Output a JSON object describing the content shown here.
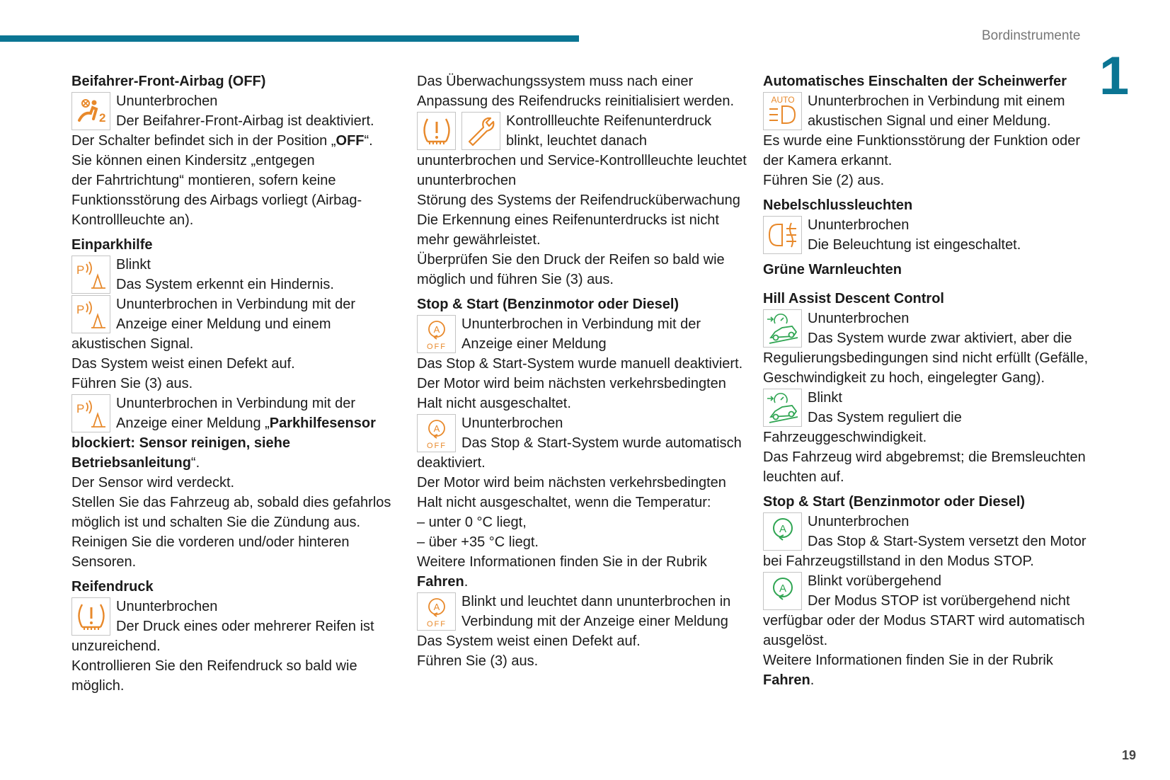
{
  "header": {
    "section_title": "Bordinstrumente",
    "chapter_number": "1",
    "accent_color": "#0b7593"
  },
  "footer": {
    "page_number": "19"
  },
  "colors": {
    "orange": "#e8892b",
    "green": "#2fa552"
  },
  "columns": [
    {
      "blocks": [
        {
          "type": "heading",
          "text": "Beifahrer-Front-Airbag (OFF)"
        },
        {
          "type": "item",
          "icons": [
            "airbag-off"
          ],
          "lines": [
            "Ununterbrochen",
            "Der Beifahrer-Front-Airbag ist deaktiviert.",
            [
              {
                "text": "Der Schalter befindet sich in der Position „"
              },
              {
                "text": "OFF",
                "bold": true
              },
              {
                "text": "“."
              }
            ],
            "Sie können einen Kindersitz „entgegen",
            "der Fahrtrichtung“ montieren, sofern keine",
            "Funktionsstörung des Airbags vorliegt (Airbag-",
            "Kontrollleuchte an)."
          ]
        },
        {
          "type": "heading",
          "text": "Einparkhilfe"
        },
        {
          "type": "item",
          "icons": [
            "park-assist"
          ],
          "lines": [
            "Blinkt",
            "Das System erkennt ein Hindernis."
          ]
        },
        {
          "type": "item",
          "icons": [
            "park-assist"
          ],
          "lines": [
            "Ununterbrochen in Verbindung mit der",
            "Anzeige einer Meldung und einem",
            "akustischen Signal.",
            "Das System weist einen Defekt auf.",
            "Führen Sie (3) aus."
          ]
        },
        {
          "type": "item",
          "icons": [
            "park-assist"
          ],
          "lines": [
            "Ununterbrochen in Verbindung mit der",
            [
              {
                "text": "Anzeige einer Meldung „"
              },
              {
                "text": "Parkhilfesensor",
                "bold": true
              }
            ],
            [
              {
                "text": "blockiert: Sensor reinigen, siehe",
                "bold": true
              }
            ],
            [
              {
                "text": "Betriebsanleitung",
                "bold": true
              },
              {
                "text": "“."
              }
            ],
            "Der Sensor wird verdeckt.",
            "Stellen Sie das Fahrzeug ab, sobald dies gefahrlos",
            "möglich ist und schalten Sie die Zündung aus.",
            "Reinigen Sie die vorderen und/oder hinteren",
            "Sensoren."
          ]
        },
        {
          "type": "heading",
          "text": "Reifendruck"
        },
        {
          "type": "item",
          "icons": [
            "tire-pressure"
          ],
          "lines": [
            "Ununterbrochen",
            "Der Druck eines oder mehrerer Reifen ist",
            "unzureichend.",
            "Kontrollieren Sie den Reifendruck so bald wie",
            "möglich."
          ]
        }
      ]
    },
    {
      "blocks": [
        {
          "type": "item",
          "icons": [],
          "lines": [
            "Das Überwachungssystem muss nach einer",
            "Anpassung des Reifendrucks reinitialisiert werden."
          ]
        },
        {
          "type": "item",
          "icons": [
            "tire-pressure",
            "wrench"
          ],
          "lines": [
            "Kontrollleuchte Reifenunterdruck",
            "blinkt, leuchtet danach",
            "ununterbrochen und Service-Kontrollleuchte leuchtet",
            "ununterbrochen",
            "Störung des Systems der Reifendrucküberwachung",
            "Die Erkennung eines Reifenunterdrucks ist nicht",
            "mehr gewährleistet.",
            "Überprüfen Sie den Druck der Reifen so bald wie",
            "möglich und führen Sie (3) aus."
          ]
        },
        {
          "type": "heading",
          "text": "Stop & Start (Benzinmotor oder Diesel)"
        },
        {
          "type": "item",
          "icons": [
            "stop-start-off"
          ],
          "lines": [
            "Ununterbrochen in Verbindung mit der",
            "Anzeige einer Meldung",
            "Das Stop & Start-System wurde manuell deaktiviert.",
            "Der Motor wird beim nächsten verkehrsbedingten",
            "Halt nicht ausgeschaltet."
          ]
        },
        {
          "type": "item",
          "icons": [
            "stop-start-off"
          ],
          "lines": [
            "Ununterbrochen",
            "Das Stop & Start-System wurde automatisch",
            "deaktiviert.",
            "Der Motor wird beim nächsten verkehrsbedingten",
            "Halt nicht ausgeschaltet, wenn die Temperatur:",
            "–  unter 0 °C liegt,",
            "–  über +35 °C liegt.",
            "Weitere Informationen finden Sie in der Rubrik",
            [
              {
                "text": "Fahren",
                "bold": true
              },
              {
                "text": "."
              }
            ]
          ]
        },
        {
          "type": "item",
          "icons": [
            "stop-start-off"
          ],
          "lines": [
            "Blinkt und leuchtet dann ununterbrochen in",
            "Verbindung mit der Anzeige einer Meldung",
            "Das System weist einen Defekt auf.",
            "Führen Sie (3) aus."
          ]
        }
      ]
    },
    {
      "blocks": [
        {
          "type": "heading",
          "text": "Automatisches Einschalten der Scheinwerfer"
        },
        {
          "type": "item",
          "icons": [
            "auto-headlamps"
          ],
          "lines": [
            "Ununterbrochen in Verbindung mit einem",
            "akustischen Signal und einer Meldung.",
            "Es wurde eine Funktionsstörung der Funktion oder",
            "der Kamera erkannt.",
            "Führen Sie (2) aus."
          ]
        },
        {
          "type": "heading",
          "text": "Nebelschlussleuchten"
        },
        {
          "type": "item",
          "icons": [
            "rear-fog-lamp"
          ],
          "lines": [
            "Ununterbrochen",
            "Die Beleuchtung ist eingeschaltet."
          ]
        },
        {
          "type": "heading",
          "text": "Grüne Warnleuchten"
        },
        {
          "type": "heading",
          "text": "Hill Assist Descent Control",
          "extra": true
        },
        {
          "type": "item",
          "icons": [
            "hill-descent"
          ],
          "lines": [
            "Ununterbrochen",
            "Das System wurde zwar aktiviert, aber die",
            "Regulierungsbedingungen sind nicht erfüllt (Gefälle,",
            "Geschwindigkeit zu hoch, eingelegter Gang)."
          ]
        },
        {
          "type": "item",
          "icons": [
            "hill-descent"
          ],
          "lines": [
            "Blinkt",
            "Das System reguliert die",
            "Fahrzeuggeschwindigkeit.",
            "Das Fahrzeug wird abgebremst; die Bremsleuchten",
            "leuchten auf."
          ]
        },
        {
          "type": "heading",
          "text": "Stop & Start (Benzinmotor oder Diesel)"
        },
        {
          "type": "item",
          "icons": [
            "stop-start"
          ],
          "lines": [
            "Ununterbrochen",
            "Das Stop & Start-System versetzt den Motor",
            "bei Fahrzeugstillstand in den Modus STOP."
          ]
        },
        {
          "type": "item",
          "icons": [
            "stop-start"
          ],
          "lines": [
            "Blinkt vorübergehend",
            "Der Modus STOP ist vorübergehend nicht",
            "verfügbar oder der Modus START wird automatisch",
            "ausgelöst.",
            "Weitere Informationen finden Sie in der Rubrik",
            [
              {
                "text": "Fahren",
                "bold": true
              },
              {
                "text": "."
              }
            ]
          ]
        }
      ]
    }
  ]
}
